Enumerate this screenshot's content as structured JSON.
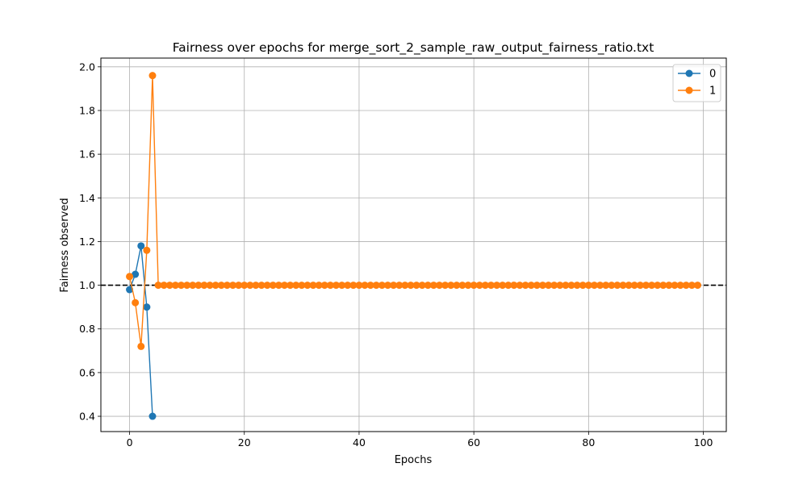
{
  "chart_data": {
    "type": "line",
    "title": "Fairness over epochs for merge_sort_2_sample_raw_output_fairness_ratio.txt",
    "xlabel": "Epochs",
    "ylabel": "Fairness observed",
    "xlim": [
      -5,
      104
    ],
    "ylim": [
      0.33,
      2.04
    ],
    "xticks": [
      0,
      20,
      40,
      60,
      80,
      100
    ],
    "yticks": [
      0.4,
      0.6,
      0.8,
      1.0,
      1.2,
      1.4,
      1.6,
      1.8,
      2.0
    ],
    "xtick_labels": [
      "0",
      "20",
      "40",
      "60",
      "80",
      "100"
    ],
    "ytick_labels": [
      "0.4",
      "0.6",
      "0.8",
      "1.0",
      "1.2",
      "1.4",
      "1.6",
      "1.8",
      "2.0"
    ],
    "grid": true,
    "reference_line": {
      "y": 1.0,
      "color": "#000000",
      "style": "dashed"
    },
    "legend": {
      "placement": "top-right"
    },
    "series": [
      {
        "name": "0",
        "color": "#1f77b4",
        "x": [
          0,
          1,
          2,
          3,
          4
        ],
        "y": [
          0.98,
          1.05,
          1.18,
          0.9,
          0.4
        ]
      },
      {
        "name": "1",
        "color": "#ff7f0e",
        "x_start": 0,
        "x_end": 99,
        "y_head": [
          1.04,
          0.92,
          0.72,
          1.16,
          1.96
        ],
        "y_rest": 1.0
      }
    ]
  }
}
